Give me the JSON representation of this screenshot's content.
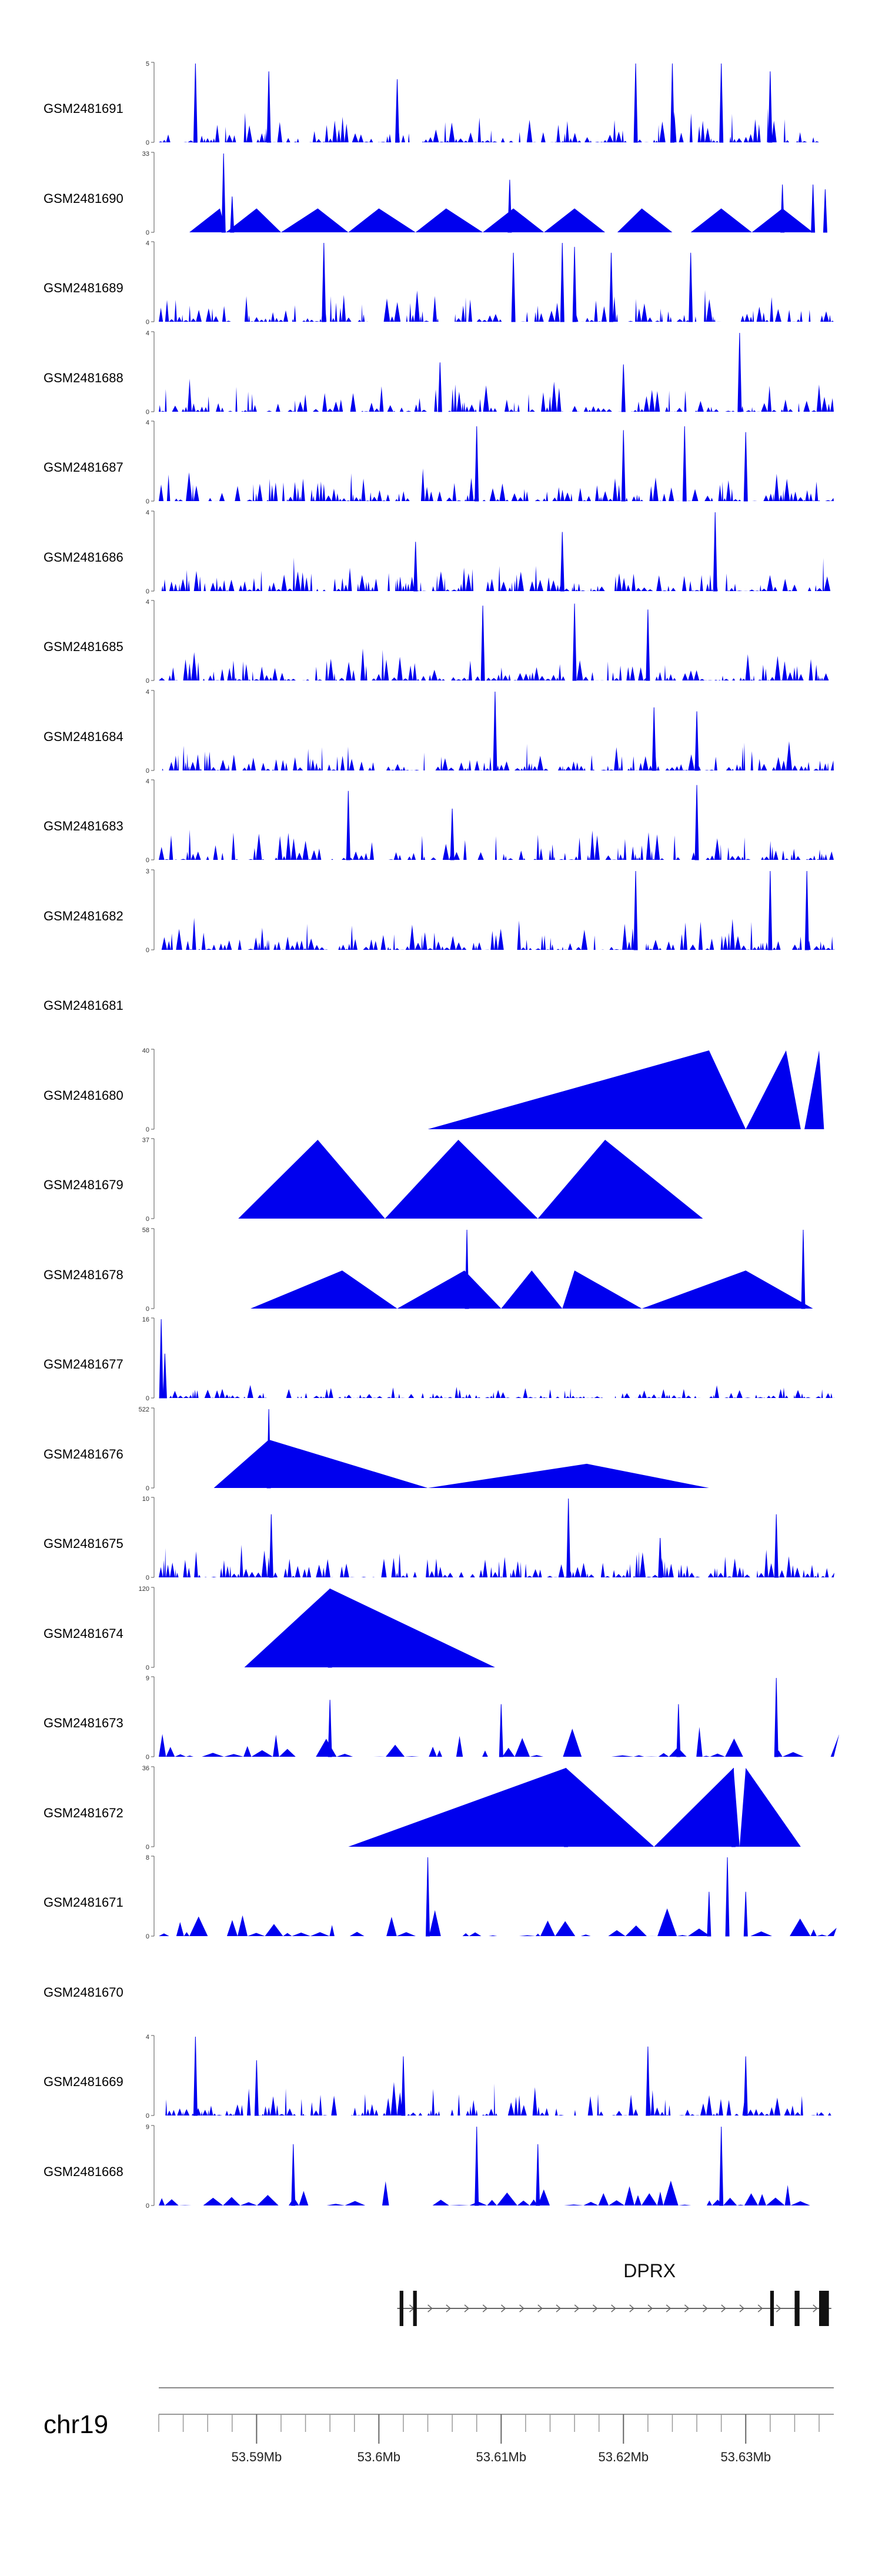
{
  "chart_data": {
    "type": "area",
    "title": "",
    "chromosome": "chr19",
    "gene": {
      "name": "DPRX",
      "start_mb": 53.6015,
      "end_mb": 53.637,
      "strand": "+",
      "exons_mb": [
        [
          53.6017,
          53.602
        ],
        [
          53.6028,
          53.6031
        ],
        [
          53.632,
          53.6323
        ],
        [
          53.634,
          53.6344
        ],
        [
          53.636,
          53.6368
        ]
      ]
    },
    "xaxis": {
      "range_mb": [
        53.582,
        53.6372
      ],
      "ticks": [
        {
          "value": 53.59,
          "label": "53.59Mb"
        },
        {
          "value": 53.6,
          "label": "53.6Mb"
        },
        {
          "value": 53.61,
          "label": "53.61Mb"
        },
        {
          "value": 53.62,
          "label": "53.62Mb"
        },
        {
          "value": 53.63,
          "label": "53.63Mb"
        }
      ],
      "minor_step_mb": 0.002
    },
    "series": [
      {
        "name": "GSM2481691",
        "ymax": 5,
        "ytick_top": "5",
        "ytick_bottom": "0",
        "empty": false,
        "mode": "dense",
        "spikes": [
          [
            53.585,
            5
          ],
          [
            53.591,
            4.5
          ],
          [
            53.6015,
            4
          ],
          [
            53.621,
            5
          ],
          [
            53.624,
            5
          ],
          [
            53.628,
            5
          ],
          [
            53.632,
            4.5
          ]
        ]
      },
      {
        "name": "GSM2481690",
        "ymax": 33,
        "ytick_top": "33",
        "ytick_bottom": "0",
        "empty": false,
        "mode": "mixed",
        "tri": [
          [
            53.5845,
            53.587,
            53.5875,
            10
          ],
          [
            53.5875,
            53.59,
            53.592,
            10
          ],
          [
            53.592,
            53.595,
            53.5975,
            10
          ],
          [
            53.5975,
            53.6,
            53.603,
            10
          ],
          [
            53.603,
            53.6055,
            53.6085,
            10
          ],
          [
            53.6085,
            53.611,
            53.6135,
            10
          ],
          [
            53.6135,
            53.616,
            53.6185,
            10
          ],
          [
            53.6195,
            53.6215,
            53.624,
            10
          ],
          [
            53.6255,
            53.628,
            53.6305,
            10
          ],
          [
            53.6305,
            53.633,
            53.6355,
            10
          ]
        ],
        "spikes": [
          [
            53.5873,
            33
          ],
          [
            53.588,
            15
          ],
          [
            53.6107,
            22
          ],
          [
            53.633,
            20
          ],
          [
            53.6355,
            20
          ],
          [
            53.6365,
            18
          ]
        ]
      },
      {
        "name": "GSM2481689",
        "ymax": 4,
        "ytick_top": "4",
        "ytick_bottom": "0",
        "empty": false,
        "mode": "dense",
        "spikes": [
          [
            53.5955,
            4
          ],
          [
            53.611,
            3.5
          ],
          [
            53.615,
            4
          ],
          [
            53.616,
            3.8
          ],
          [
            53.619,
            3.5
          ],
          [
            53.6255,
            3.5
          ]
        ]
      },
      {
        "name": "GSM2481688",
        "ymax": 4,
        "ytick_top": "4",
        "ytick_bottom": "0",
        "empty": false,
        "mode": "dense",
        "spikes": [
          [
            53.6295,
            4
          ],
          [
            53.605,
            2.5
          ],
          [
            53.62,
            2.4
          ]
        ]
      },
      {
        "name": "GSM2481687",
        "ymax": 4,
        "ytick_top": "4",
        "ytick_bottom": "0",
        "empty": false,
        "mode": "dense",
        "spikes": [
          [
            53.608,
            3.8
          ],
          [
            53.62,
            3.6
          ],
          [
            53.625,
            3.8
          ],
          [
            53.63,
            3.5
          ]
        ]
      },
      {
        "name": "GSM2481686",
        "ymax": 4,
        "ytick_top": "4",
        "ytick_bottom": "0",
        "empty": false,
        "mode": "dense",
        "spikes": [
          [
            53.6275,
            4
          ],
          [
            53.615,
            3
          ],
          [
            53.603,
            2.5
          ]
        ]
      },
      {
        "name": "GSM2481685",
        "ymax": 4,
        "ytick_top": "4",
        "ytick_bottom": "0",
        "empty": false,
        "mode": "dense",
        "spikes": [
          [
            53.6085,
            3.8
          ],
          [
            53.616,
            3.9
          ],
          [
            53.622,
            3.6
          ]
        ]
      },
      {
        "name": "GSM2481684",
        "ymax": 4,
        "ytick_top": "4",
        "ytick_bottom": "0",
        "empty": false,
        "mode": "dense",
        "spikes": [
          [
            53.6095,
            4
          ],
          [
            53.6225,
            3.2
          ],
          [
            53.626,
            3
          ]
        ]
      },
      {
        "name": "GSM2481683",
        "ymax": 4,
        "ytick_top": "4",
        "ytick_bottom": "0",
        "empty": false,
        "mode": "dense",
        "spikes": [
          [
            53.5975,
            3.5
          ],
          [
            53.626,
            3.8
          ],
          [
            53.606,
            2.6
          ]
        ]
      },
      {
        "name": "GSM2481682",
        "ymax": 3,
        "ytick_top": "3",
        "ytick_bottom": "0",
        "empty": false,
        "mode": "dense",
        "spikes": [
          [
            53.621,
            3
          ],
          [
            53.632,
            3
          ],
          [
            53.635,
            3
          ]
        ]
      },
      {
        "name": "GSM2481681",
        "ymax": 0,
        "ytick_top": "",
        "ytick_bottom": "",
        "empty": true,
        "mode": "none"
      },
      {
        "name": "GSM2481680",
        "ymax": 40,
        "ytick_top": "40",
        "ytick_bottom": "0",
        "empty": false,
        "mode": "tri",
        "tri": [
          [
            53.604,
            53.627,
            53.63,
            40
          ],
          [
            53.63,
            53.6333,
            53.6345,
            40
          ],
          [
            53.6348,
            53.636,
            53.6364,
            40
          ]
        ]
      },
      {
        "name": "GSM2481679",
        "ymax": 37,
        "ytick_top": "37",
        "ytick_bottom": "0",
        "empty": false,
        "mode": "tri",
        "tri": [
          [
            53.5885,
            53.595,
            53.6005,
            37
          ],
          [
            53.6005,
            53.6065,
            53.613,
            37
          ],
          [
            53.613,
            53.6185,
            53.6265,
            37
          ]
        ]
      },
      {
        "name": "GSM2481678",
        "ymax": 58,
        "ytick_top": "58",
        "ytick_bottom": "0",
        "empty": false,
        "mode": "mixed",
        "tri": [
          [
            53.5895,
            53.597,
            53.6015,
            28
          ],
          [
            53.6015,
            53.607,
            53.61,
            28
          ],
          [
            53.61,
            53.6125,
            53.615,
            28
          ],
          [
            53.615,
            53.616,
            53.6215,
            28
          ],
          [
            53.6215,
            53.63,
            53.6355,
            28
          ]
        ],
        "spikes": [
          [
            53.6072,
            58
          ],
          [
            53.6347,
            58
          ]
        ]
      },
      {
        "name": "GSM2481677",
        "ymax": 16,
        "ytick_top": "16",
        "ytick_bottom": "0",
        "empty": false,
        "mode": "dense_low",
        "spikes": [
          [
            53.5822,
            16
          ],
          [
            53.5825,
            9
          ]
        ]
      },
      {
        "name": "GSM2481676",
        "ymax": 522,
        "ytick_top": "522",
        "ytick_bottom": "0",
        "empty": false,
        "mode": "mixed",
        "tri": [
          [
            53.5865,
            53.591,
            53.604,
            320
          ],
          [
            53.604,
            53.617,
            53.627,
            160
          ]
        ],
        "spikes": [
          [
            53.591,
            522
          ]
        ]
      },
      {
        "name": "GSM2481675",
        "ymax": 10,
        "ytick_top": "10",
        "ytick_bottom": "0",
        "empty": false,
        "mode": "dense",
        "spikes": [
          [
            53.5912,
            8
          ],
          [
            53.6155,
            10
          ],
          [
            53.6325,
            8
          ],
          [
            53.623,
            5
          ]
        ]
      },
      {
        "name": "GSM2481674",
        "ymax": 120,
        "ytick_top": "120",
        "ytick_bottom": "0",
        "empty": false,
        "mode": "tri",
        "tri": [
          [
            53.589,
            53.596,
            53.6095,
            120
          ]
        ],
        "spikes": [
          [
            53.596,
            120
          ]
        ]
      },
      {
        "name": "GSM2481673",
        "ymax": 9,
        "ytick_top": "9",
        "ytick_bottom": "0",
        "empty": false,
        "mode": "dense_tri",
        "spikes": [
          [
            53.6325,
            9
          ],
          [
            53.596,
            6.5
          ],
          [
            53.6245,
            6
          ],
          [
            53.61,
            6
          ]
        ]
      },
      {
        "name": "GSM2481672",
        "ymax": 36,
        "ytick_top": "36",
        "ytick_bottom": "0",
        "empty": false,
        "mode": "tri",
        "tri": [
          [
            53.5975,
            53.6153,
            53.6225,
            36
          ],
          [
            53.6225,
            53.629,
            53.6295,
            36
          ],
          [
            53.6295,
            53.63,
            53.6345,
            36
          ]
        ],
        "spikes": [
          [
            53.6153,
            36
          ],
          [
            53.629,
            36
          ]
        ]
      },
      {
        "name": "GSM2481671",
        "ymax": 8,
        "ytick_top": "8",
        "ytick_bottom": "0",
        "empty": false,
        "mode": "dense_tri",
        "spikes": [
          [
            53.604,
            8
          ],
          [
            53.6285,
            8
          ],
          [
            53.627,
            4.5
          ],
          [
            53.63,
            4.5
          ]
        ]
      },
      {
        "name": "GSM2481670",
        "ymax": 0,
        "ytick_top": "",
        "ytick_bottom": "",
        "empty": true,
        "mode": "none"
      },
      {
        "name": "GSM2481669",
        "ymax": 4,
        "ytick_top": "4",
        "ytick_bottom": "0",
        "empty": false,
        "mode": "dense",
        "spikes": [
          [
            53.585,
            4
          ],
          [
            53.59,
            2.8
          ],
          [
            53.602,
            3
          ],
          [
            53.622,
            3.5
          ],
          [
            53.63,
            3
          ]
        ]
      },
      {
        "name": "GSM2481668",
        "ymax": 9,
        "ytick_top": "9",
        "ytick_bottom": "0",
        "empty": false,
        "mode": "dense_tri",
        "spikes": [
          [
            53.608,
            9
          ],
          [
            53.628,
            9
          ],
          [
            53.593,
            7
          ],
          [
            53.613,
            7
          ]
        ]
      }
    ]
  }
}
